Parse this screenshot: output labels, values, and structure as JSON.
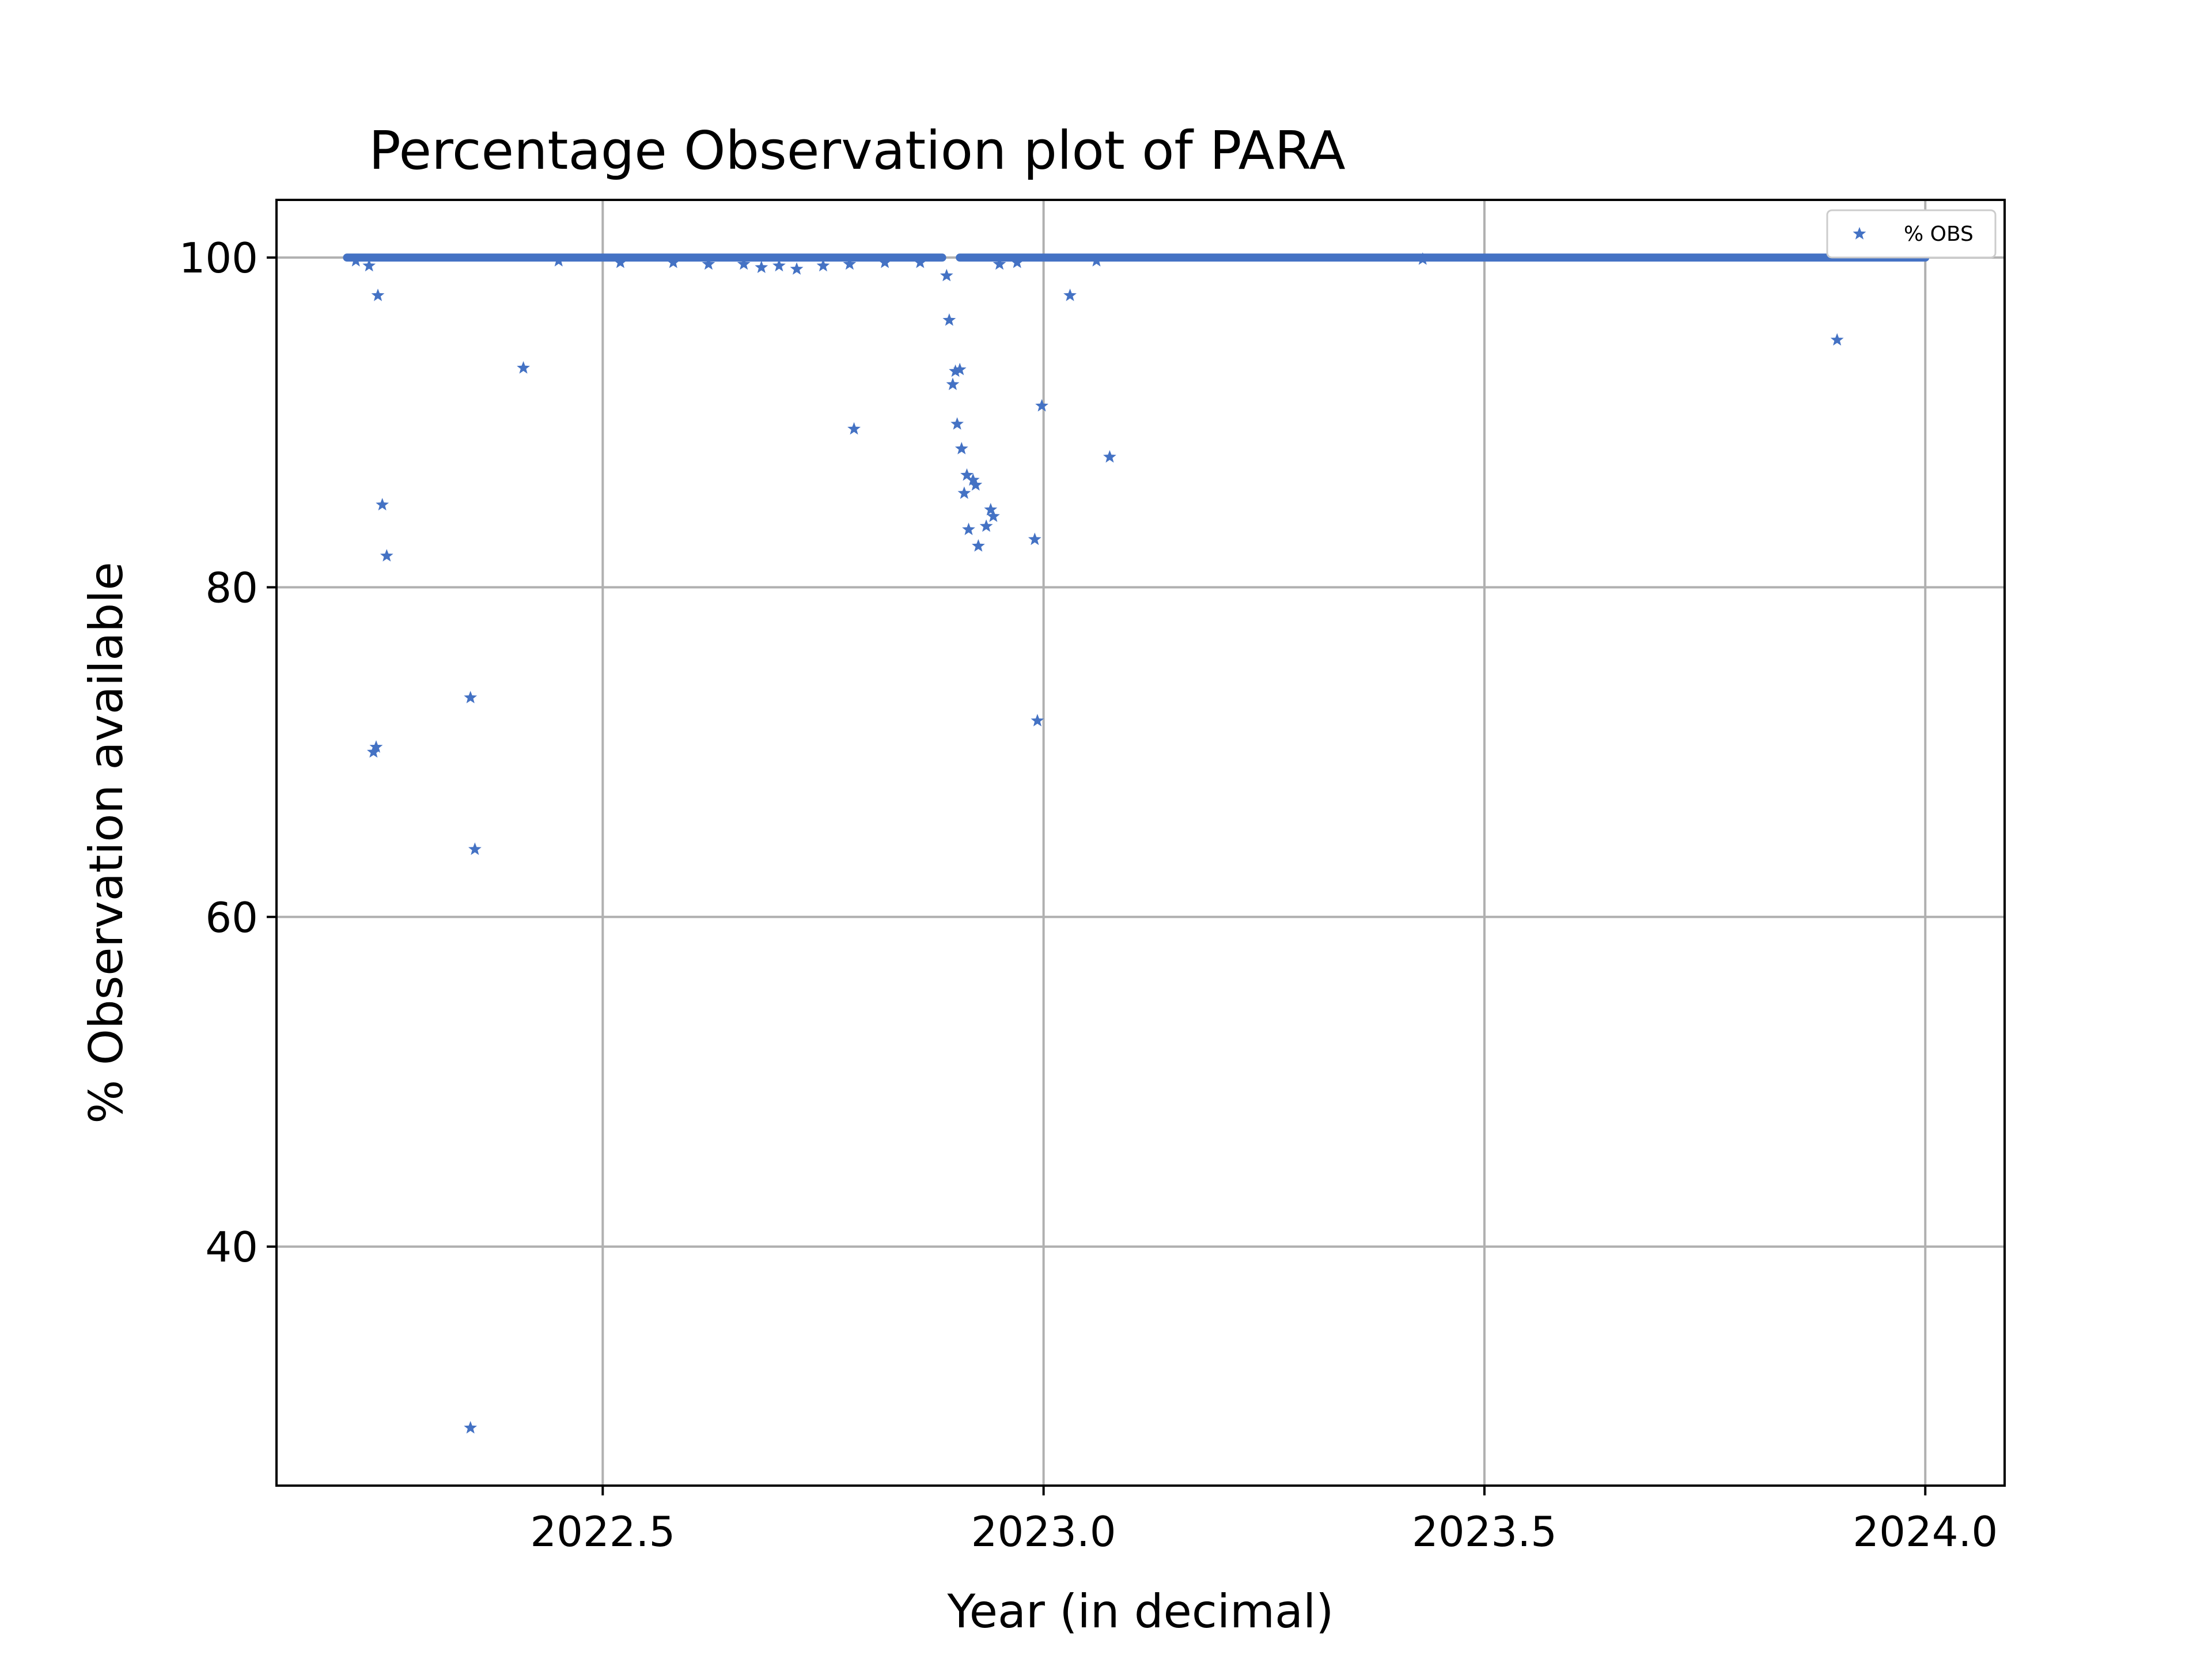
{
  "chart_data": {
    "type": "scatter",
    "title": "Percentage Observation plot of PARA",
    "xlabel": "Year (in decimal)",
    "ylabel": "% Observation available",
    "xlim": [
      2022.13,
      2024.09
    ],
    "ylim": [
      25.5,
      103.5
    ],
    "xticks": [
      2022.5,
      2023.0,
      2023.5,
      2024.0
    ],
    "xtick_labels": [
      "2022.5",
      "2023.0",
      "2023.5",
      "2024.0"
    ],
    "yticks": [
      40,
      60,
      80,
      100
    ],
    "ytick_labels": [
      "40",
      "60",
      "80",
      "100"
    ],
    "grid": true,
    "legend": {
      "position": "top-right",
      "entries": [
        "% OBS"
      ]
    },
    "colors": {
      "series": "#4472c4",
      "grid": "#b0b0b0",
      "axes": "#000000"
    },
    "marker": "star",
    "series": [
      {
        "name": "% OBS",
        "baseline": {
          "x_start": 2022.21,
          "x_end": 2024.0,
          "value": 100,
          "gaps": [
            [
              2022.885,
              2022.905
            ]
          ]
        },
        "points": [
          {
            "x": 2022.22,
            "y": 99.8
          },
          {
            "x": 2022.235,
            "y": 99.5
          },
          {
            "x": 2022.245,
            "y": 97.7
          },
          {
            "x": 2022.25,
            "y": 85.0
          },
          {
            "x": 2022.255,
            "y": 81.9
          },
          {
            "x": 2022.24,
            "y": 70.0
          },
          {
            "x": 2022.243,
            "y": 70.3
          },
          {
            "x": 2022.35,
            "y": 73.3
          },
          {
            "x": 2022.355,
            "y": 64.1
          },
          {
            "x": 2022.35,
            "y": 29.0
          },
          {
            "x": 2022.41,
            "y": 93.3
          },
          {
            "x": 2022.45,
            "y": 99.8
          },
          {
            "x": 2022.52,
            "y": 99.7
          },
          {
            "x": 2022.58,
            "y": 99.7
          },
          {
            "x": 2022.62,
            "y": 99.6
          },
          {
            "x": 2022.66,
            "y": 99.6
          },
          {
            "x": 2022.68,
            "y": 99.4
          },
          {
            "x": 2022.7,
            "y": 99.5
          },
          {
            "x": 2022.72,
            "y": 99.3
          },
          {
            "x": 2022.75,
            "y": 99.5
          },
          {
            "x": 2022.78,
            "y": 99.6
          },
          {
            "x": 2022.785,
            "y": 89.6
          },
          {
            "x": 2022.82,
            "y": 99.7
          },
          {
            "x": 2022.86,
            "y": 99.7
          },
          {
            "x": 2022.89,
            "y": 98.9
          },
          {
            "x": 2022.893,
            "y": 96.2
          },
          {
            "x": 2022.897,
            "y": 92.3
          },
          {
            "x": 2022.9,
            "y": 93.1
          },
          {
            "x": 2022.905,
            "y": 93.2
          },
          {
            "x": 2022.902,
            "y": 89.9
          },
          {
            "x": 2022.907,
            "y": 88.4
          },
          {
            "x": 2022.91,
            "y": 85.7
          },
          {
            "x": 2022.913,
            "y": 86.8
          },
          {
            "x": 2022.915,
            "y": 83.5
          },
          {
            "x": 2022.92,
            "y": 86.5
          },
          {
            "x": 2022.923,
            "y": 86.2
          },
          {
            "x": 2022.926,
            "y": 82.5
          },
          {
            "x": 2022.935,
            "y": 83.7
          },
          {
            "x": 2022.94,
            "y": 84.7
          },
          {
            "x": 2022.943,
            "y": 84.3
          },
          {
            "x": 2022.95,
            "y": 99.6
          },
          {
            "x": 2022.97,
            "y": 99.7
          },
          {
            "x": 2022.99,
            "y": 82.9
          },
          {
            "x": 2022.993,
            "y": 71.9
          },
          {
            "x": 2022.998,
            "y": 91.0
          },
          {
            "x": 2023.03,
            "y": 97.7
          },
          {
            "x": 2023.075,
            "y": 87.9
          },
          {
            "x": 2023.06,
            "y": 99.8
          },
          {
            "x": 2023.43,
            "y": 99.9
          },
          {
            "x": 2023.9,
            "y": 95.0
          }
        ]
      }
    ]
  }
}
